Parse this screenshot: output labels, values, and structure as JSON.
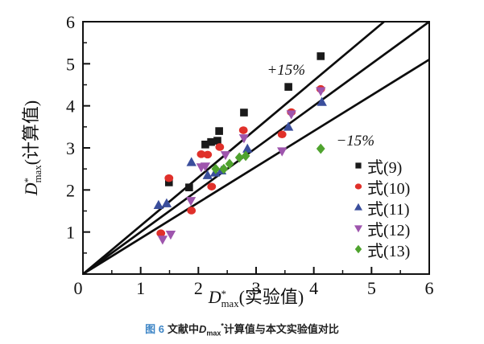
{
  "figure": {
    "y_axis_label": {
      "symbol": "D",
      "sup": "*",
      "sub": "max",
      "suffix": "(计算值)"
    },
    "x_axis_label": {
      "symbol": "D",
      "sup": "*",
      "sub": "max",
      "suffix": "(实验值)"
    },
    "caption": {
      "fig_no": "图 6",
      "prefix": "文献中",
      "symbol": "D",
      "sub": "max",
      "sup": "*",
      "suffix": "计算值与本文实验值对比",
      "fig_no_color": "#3d85c6"
    }
  },
  "chart_data": {
    "type": "scatter",
    "title": "",
    "xlabel": "D*max(实验值)",
    "ylabel": "D*max(计算值)",
    "xlim": [
      0,
      6
    ],
    "ylim": [
      0,
      6
    ],
    "x_ticks": [
      0,
      1,
      2,
      3,
      4,
      5,
      6
    ],
    "y_ticks": [
      1,
      2,
      3,
      4,
      5,
      6
    ],
    "minor_tick_step": 0.5,
    "grid": false,
    "legend_position": "right-middle",
    "axis_color": "#111111",
    "reference_lines": [
      {
        "name": "plus-15-percent",
        "slope": 1.15
      },
      {
        "name": "one-to-one",
        "slope": 1.0
      },
      {
        "name": "minus-15-percent",
        "slope": 0.85
      }
    ],
    "annotations": [
      {
        "text": "+15%",
        "x": 3.52,
        "y": 4.87
      },
      {
        "text": "−15%",
        "x": 4.72,
        "y": 3.19
      }
    ],
    "series": [
      {
        "name": "式(9)",
        "marker": "square",
        "color": "#1a1a1a",
        "points": [
          [
            1.49,
            2.18
          ],
          [
            1.84,
            2.06
          ],
          [
            2.12,
            3.08
          ],
          [
            2.22,
            3.14
          ],
          [
            2.33,
            3.17
          ],
          [
            2.36,
            3.4
          ],
          [
            2.79,
            3.84
          ],
          [
            3.56,
            4.45
          ],
          [
            4.12,
            5.18
          ]
        ]
      },
      {
        "name": "式(10)",
        "marker": "circle",
        "color": "#e0302a",
        "points": [
          [
            1.35,
            0.97
          ],
          [
            1.88,
            1.51
          ],
          [
            1.49,
            2.28
          ],
          [
            2.23,
            2.08
          ],
          [
            2.05,
            2.85
          ],
          [
            2.16,
            2.84
          ],
          [
            2.37,
            3.02
          ],
          [
            2.78,
            3.42
          ],
          [
            3.45,
            3.32
          ],
          [
            3.61,
            3.85
          ],
          [
            4.12,
            4.4
          ]
        ]
      },
      {
        "name": "式(11)",
        "marker": "triangle-up",
        "color": "#3a4e9c",
        "points": [
          [
            1.31,
            1.64
          ],
          [
            1.45,
            1.68
          ],
          [
            1.88,
            2.66
          ],
          [
            2.16,
            2.35
          ],
          [
            2.29,
            2.41
          ],
          [
            2.4,
            2.46
          ],
          [
            2.85,
            2.98
          ],
          [
            3.56,
            3.5
          ],
          [
            4.14,
            4.09
          ]
        ]
      },
      {
        "name": "式(12)",
        "marker": "triangle-down",
        "color": "#9e55ad",
        "points": [
          [
            1.38,
            0.82
          ],
          [
            1.52,
            0.94
          ],
          [
            1.87,
            1.74
          ],
          [
            2.05,
            2.54
          ],
          [
            2.12,
            2.56
          ],
          [
            2.47,
            2.83
          ],
          [
            2.79,
            3.23
          ],
          [
            3.45,
            2.92
          ],
          [
            3.61,
            3.8
          ],
          [
            4.12,
            4.35
          ]
        ]
      },
      {
        "name": "式(13)",
        "marker": "diamond",
        "color": "#4fa32e",
        "points": [
          [
            2.3,
            2.5
          ],
          [
            2.44,
            2.5
          ],
          [
            2.54,
            2.62
          ],
          [
            2.71,
            2.77
          ],
          [
            2.82,
            2.81
          ],
          [
            4.12,
            2.98
          ]
        ]
      }
    ]
  }
}
